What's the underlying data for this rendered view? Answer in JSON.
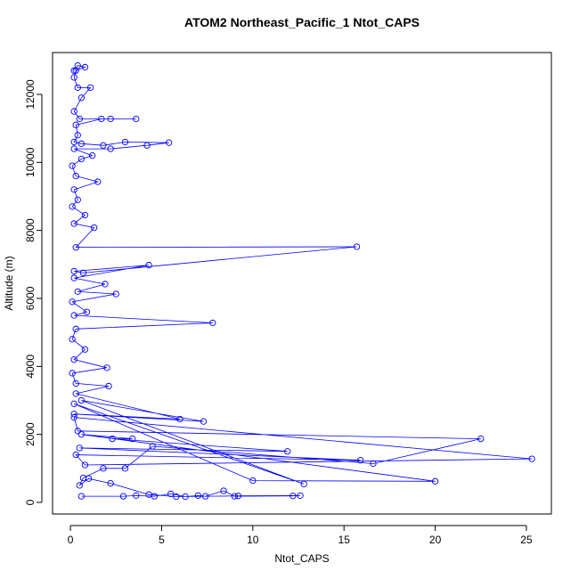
{
  "chart_data": {
    "type": "line",
    "title": "ATOM2 Northeast_Pacific_1 Ntot_CAPS",
    "x_label": "Ntot_CAPS",
    "y_label": "Altitude (m)",
    "color": "#0000ff",
    "x": [
      0.6,
      2.9,
      3.6,
      4.6,
      5.5,
      6.3,
      7.0,
      7.4,
      8.4,
      9.0,
      12.2,
      12.6,
      9.2,
      5.8,
      4.3,
      2.2,
      1.0,
      0.5,
      0.7,
      1.8,
      3.0,
      4.5,
      16.6,
      22.5,
      0.4,
      0.2,
      25.3,
      0.8,
      0.3,
      15.9,
      0.5,
      11.9,
      2.3,
      3.4,
      0.6,
      20.0,
      10.0,
      0.2,
      12.8,
      0.6,
      7.3,
      0.2,
      6.0,
      0.3,
      2.1,
      0.3,
      0.1,
      2.0,
      0.2,
      0.8,
      0.1,
      0.3,
      7.8,
      0.2,
      0.9,
      0.1,
      2.5,
      0.4,
      1.9,
      0.2,
      4.3,
      0.2,
      0.7,
      15.7,
      0.3,
      1.3,
      0.2,
      0.8,
      0.1,
      0.4,
      0.2,
      1.5,
      0.3,
      0.1,
      0.6,
      1.2,
      0.2,
      2.2,
      4.2,
      5.4,
      3.0,
      1.8,
      0.6,
      0.2,
      0.4,
      0.3,
      1.7,
      2.2,
      3.6,
      0.5,
      0.2,
      0.6,
      1.1,
      0.4,
      0.2,
      0.3,
      0.8,
      0.4,
      0.2
    ],
    "values": [
      180,
      180,
      200,
      180,
      250,
      170,
      200,
      180,
      340,
      180,
      190,
      200,
      190,
      170,
      230,
      560,
      700,
      500,
      720,
      1000,
      1000,
      1650,
      1140,
      1870,
      2100,
      2500,
      1280,
      1100,
      1400,
      1240,
      1600,
      1500,
      1870,
      1870,
      2000,
      620,
      640,
      2900,
      540,
      3000,
      2380,
      2600,
      2450,
      3200,
      3420,
      3500,
      3800,
      3960,
      4200,
      4500,
      4800,
      5100,
      5280,
      5500,
      5600,
      5900,
      6130,
      6200,
      6420,
      6600,
      6980,
      6800,
      6750,
      7520,
      7500,
      8080,
      8200,
      8450,
      8700,
      8900,
      9200,
      9430,
      9600,
      9900,
      10100,
      10200,
      10400,
      10400,
      10500,
      10580,
      10600,
      10500,
      10550,
      10600,
      10800,
      11100,
      11280,
      11280,
      11280,
      11280,
      11500,
      11900,
      12200,
      12200,
      12500,
      12700,
      12800,
      12850,
      12700
    ],
    "xlim": [
      -0.98,
      26.37
    ],
    "ylim": [
      -341,
      13231
    ],
    "xticks": [
      0,
      5,
      10,
      15,
      20,
      25
    ],
    "yticks": [
      0,
      2000,
      4000,
      6000,
      8000,
      10000,
      12000
    ]
  }
}
